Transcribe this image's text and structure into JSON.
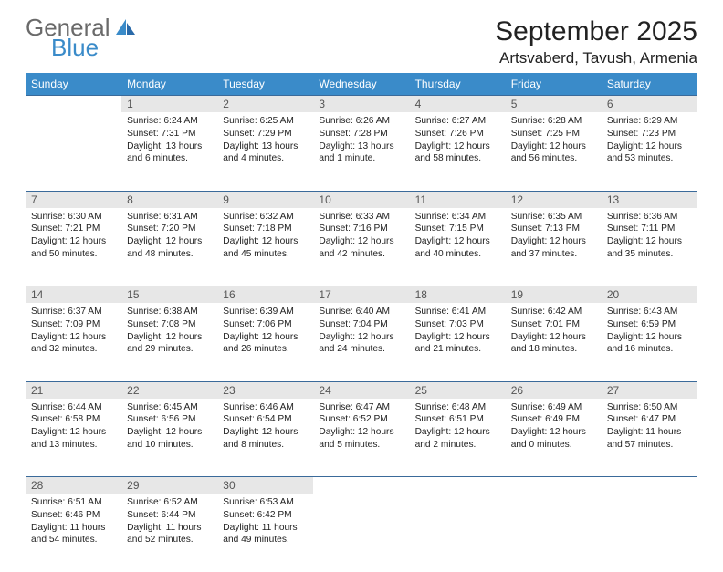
{
  "brand": {
    "word1": "General",
    "word2": "Blue"
  },
  "title": "September 2025",
  "location": "Artsvaberd, Tavush, Armenia",
  "colors": {
    "header_bg": "#3a8bc9",
    "header_text": "#ffffff",
    "daynum_bg": "#e7e7e7",
    "row_border": "#3a6a9a",
    "logo_gray": "#6a6a6a",
    "logo_blue": "#3a8bc9"
  },
  "weekdays": [
    "Sunday",
    "Monday",
    "Tuesday",
    "Wednesday",
    "Thursday",
    "Friday",
    "Saturday"
  ],
  "weeks": [
    [
      {
        "n": "",
        "sunrise": "",
        "sunset": "",
        "daylight": ""
      },
      {
        "n": "1",
        "sunrise": "Sunrise: 6:24 AM",
        "sunset": "Sunset: 7:31 PM",
        "daylight": "Daylight: 13 hours and 6 minutes."
      },
      {
        "n": "2",
        "sunrise": "Sunrise: 6:25 AM",
        "sunset": "Sunset: 7:29 PM",
        "daylight": "Daylight: 13 hours and 4 minutes."
      },
      {
        "n": "3",
        "sunrise": "Sunrise: 6:26 AM",
        "sunset": "Sunset: 7:28 PM",
        "daylight": "Daylight: 13 hours and 1 minute."
      },
      {
        "n": "4",
        "sunrise": "Sunrise: 6:27 AM",
        "sunset": "Sunset: 7:26 PM",
        "daylight": "Daylight: 12 hours and 58 minutes."
      },
      {
        "n": "5",
        "sunrise": "Sunrise: 6:28 AM",
        "sunset": "Sunset: 7:25 PM",
        "daylight": "Daylight: 12 hours and 56 minutes."
      },
      {
        "n": "6",
        "sunrise": "Sunrise: 6:29 AM",
        "sunset": "Sunset: 7:23 PM",
        "daylight": "Daylight: 12 hours and 53 minutes."
      }
    ],
    [
      {
        "n": "7",
        "sunrise": "Sunrise: 6:30 AM",
        "sunset": "Sunset: 7:21 PM",
        "daylight": "Daylight: 12 hours and 50 minutes."
      },
      {
        "n": "8",
        "sunrise": "Sunrise: 6:31 AM",
        "sunset": "Sunset: 7:20 PM",
        "daylight": "Daylight: 12 hours and 48 minutes."
      },
      {
        "n": "9",
        "sunrise": "Sunrise: 6:32 AM",
        "sunset": "Sunset: 7:18 PM",
        "daylight": "Daylight: 12 hours and 45 minutes."
      },
      {
        "n": "10",
        "sunrise": "Sunrise: 6:33 AM",
        "sunset": "Sunset: 7:16 PM",
        "daylight": "Daylight: 12 hours and 42 minutes."
      },
      {
        "n": "11",
        "sunrise": "Sunrise: 6:34 AM",
        "sunset": "Sunset: 7:15 PM",
        "daylight": "Daylight: 12 hours and 40 minutes."
      },
      {
        "n": "12",
        "sunrise": "Sunrise: 6:35 AM",
        "sunset": "Sunset: 7:13 PM",
        "daylight": "Daylight: 12 hours and 37 minutes."
      },
      {
        "n": "13",
        "sunrise": "Sunrise: 6:36 AM",
        "sunset": "Sunset: 7:11 PM",
        "daylight": "Daylight: 12 hours and 35 minutes."
      }
    ],
    [
      {
        "n": "14",
        "sunrise": "Sunrise: 6:37 AM",
        "sunset": "Sunset: 7:09 PM",
        "daylight": "Daylight: 12 hours and 32 minutes."
      },
      {
        "n": "15",
        "sunrise": "Sunrise: 6:38 AM",
        "sunset": "Sunset: 7:08 PM",
        "daylight": "Daylight: 12 hours and 29 minutes."
      },
      {
        "n": "16",
        "sunrise": "Sunrise: 6:39 AM",
        "sunset": "Sunset: 7:06 PM",
        "daylight": "Daylight: 12 hours and 26 minutes."
      },
      {
        "n": "17",
        "sunrise": "Sunrise: 6:40 AM",
        "sunset": "Sunset: 7:04 PM",
        "daylight": "Daylight: 12 hours and 24 minutes."
      },
      {
        "n": "18",
        "sunrise": "Sunrise: 6:41 AM",
        "sunset": "Sunset: 7:03 PM",
        "daylight": "Daylight: 12 hours and 21 minutes."
      },
      {
        "n": "19",
        "sunrise": "Sunrise: 6:42 AM",
        "sunset": "Sunset: 7:01 PM",
        "daylight": "Daylight: 12 hours and 18 minutes."
      },
      {
        "n": "20",
        "sunrise": "Sunrise: 6:43 AM",
        "sunset": "Sunset: 6:59 PM",
        "daylight": "Daylight: 12 hours and 16 minutes."
      }
    ],
    [
      {
        "n": "21",
        "sunrise": "Sunrise: 6:44 AM",
        "sunset": "Sunset: 6:58 PM",
        "daylight": "Daylight: 12 hours and 13 minutes."
      },
      {
        "n": "22",
        "sunrise": "Sunrise: 6:45 AM",
        "sunset": "Sunset: 6:56 PM",
        "daylight": "Daylight: 12 hours and 10 minutes."
      },
      {
        "n": "23",
        "sunrise": "Sunrise: 6:46 AM",
        "sunset": "Sunset: 6:54 PM",
        "daylight": "Daylight: 12 hours and 8 minutes."
      },
      {
        "n": "24",
        "sunrise": "Sunrise: 6:47 AM",
        "sunset": "Sunset: 6:52 PM",
        "daylight": "Daylight: 12 hours and 5 minutes."
      },
      {
        "n": "25",
        "sunrise": "Sunrise: 6:48 AM",
        "sunset": "Sunset: 6:51 PM",
        "daylight": "Daylight: 12 hours and 2 minutes."
      },
      {
        "n": "26",
        "sunrise": "Sunrise: 6:49 AM",
        "sunset": "Sunset: 6:49 PM",
        "daylight": "Daylight: 12 hours and 0 minutes."
      },
      {
        "n": "27",
        "sunrise": "Sunrise: 6:50 AM",
        "sunset": "Sunset: 6:47 PM",
        "daylight": "Daylight: 11 hours and 57 minutes."
      }
    ],
    [
      {
        "n": "28",
        "sunrise": "Sunrise: 6:51 AM",
        "sunset": "Sunset: 6:46 PM",
        "daylight": "Daylight: 11 hours and 54 minutes."
      },
      {
        "n": "29",
        "sunrise": "Sunrise: 6:52 AM",
        "sunset": "Sunset: 6:44 PM",
        "daylight": "Daylight: 11 hours and 52 minutes."
      },
      {
        "n": "30",
        "sunrise": "Sunrise: 6:53 AM",
        "sunset": "Sunset: 6:42 PM",
        "daylight": "Daylight: 11 hours and 49 minutes."
      },
      {
        "n": "",
        "sunrise": "",
        "sunset": "",
        "daylight": ""
      },
      {
        "n": "",
        "sunrise": "",
        "sunset": "",
        "daylight": ""
      },
      {
        "n": "",
        "sunrise": "",
        "sunset": "",
        "daylight": ""
      },
      {
        "n": "",
        "sunrise": "",
        "sunset": "",
        "daylight": ""
      }
    ]
  ]
}
